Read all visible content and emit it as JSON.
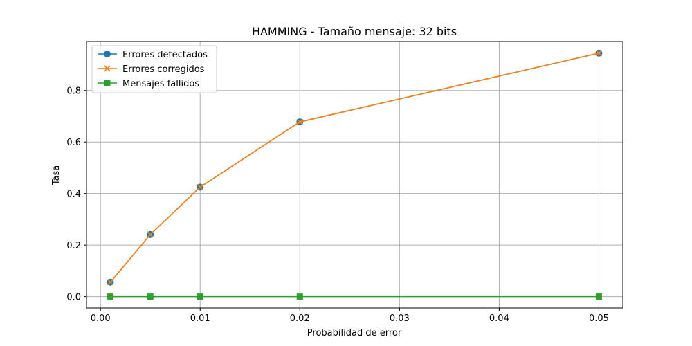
{
  "chart_data": {
    "type": "line",
    "title": "HAMMING - Tamaño mensaje: 32 bits",
    "xlabel": "Probabilidad de error",
    "ylabel": "Tasa",
    "x": [
      0.001,
      0.005,
      0.01,
      0.02,
      0.05
    ],
    "xlim": [
      -0.0014,
      0.0524
    ],
    "ylim": [
      -0.044,
      0.99
    ],
    "xticks": [
      0.0,
      0.01,
      0.02,
      0.03,
      0.04,
      0.05
    ],
    "xtick_labels": [
      "0.00",
      "0.01",
      "0.02",
      "0.03",
      "0.04",
      "0.05"
    ],
    "yticks": [
      0.0,
      0.2,
      0.4,
      0.6,
      0.8
    ],
    "ytick_labels": [
      "0.0",
      "0.2",
      "0.4",
      "0.6",
      "0.8"
    ],
    "grid": true,
    "legend_position": "top-left",
    "series": [
      {
        "name": "Errores detectados",
        "color": "#1f77b4",
        "marker": "circle",
        "values": [
          0.056,
          0.241,
          0.425,
          0.678,
          0.945
        ]
      },
      {
        "name": "Errores corregidos",
        "color": "#ff7f0e",
        "marker": "x",
        "values": [
          0.056,
          0.241,
          0.425,
          0.678,
          0.945
        ]
      },
      {
        "name": "Mensajes fallidos",
        "color": "#2ca02c",
        "marker": "square",
        "values": [
          0.0,
          0.0,
          0.0,
          0.0,
          0.0
        ]
      }
    ]
  }
}
